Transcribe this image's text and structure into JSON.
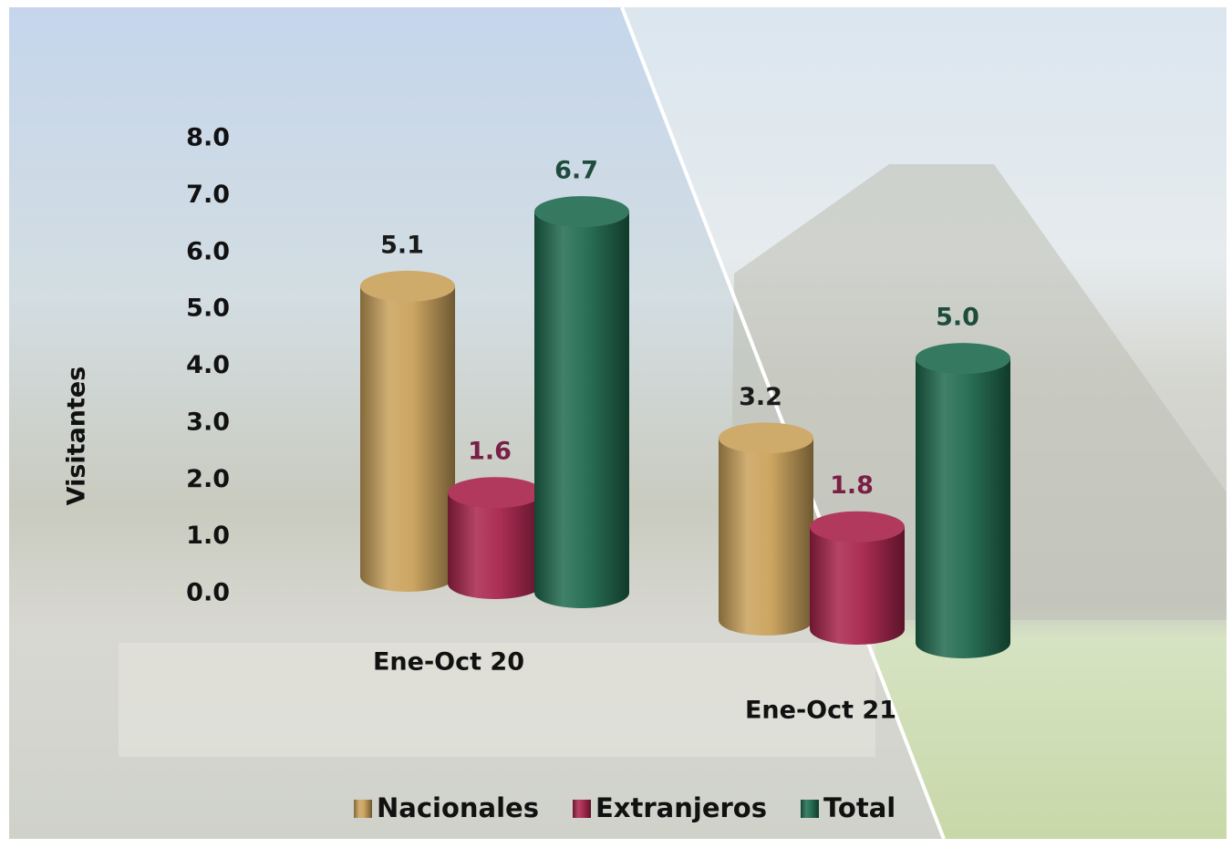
{
  "chart_data": {
    "type": "bar",
    "y_label": "Visitantes",
    "categories": [
      "Ene-Oct 20",
      "Ene-Oct 21"
    ],
    "series": [
      {
        "name": "Nacionales",
        "color": "#c9a15a",
        "values": [
          5.1,
          3.2
        ],
        "value_labels": [
          "5.1",
          "3.2"
        ]
      },
      {
        "name": "Extranjeros",
        "color": "#a8234c",
        "values": [
          1.6,
          1.8
        ],
        "value_labels": [
          "1.6",
          "1.8"
        ]
      },
      {
        "name": "Total",
        "color": "#1f6a4e",
        "values": [
          6.7,
          5.0
        ],
        "value_labels": [
          "6.7",
          "5.0"
        ]
      }
    ],
    "ylim": [
      0,
      8
    ],
    "yticks": [
      {
        "value": 0,
        "label": "0.0"
      },
      {
        "value": 1,
        "label": "1.0"
      },
      {
        "value": 2,
        "label": "2.0"
      },
      {
        "value": 3,
        "label": "3.0"
      },
      {
        "value": 4,
        "label": "4.0"
      },
      {
        "value": 5,
        "label": "5.0"
      },
      {
        "value": 6,
        "label": "6.0"
      },
      {
        "value": 7,
        "label": "7.0"
      },
      {
        "value": 8,
        "label": "8.0"
      }
    ]
  }
}
